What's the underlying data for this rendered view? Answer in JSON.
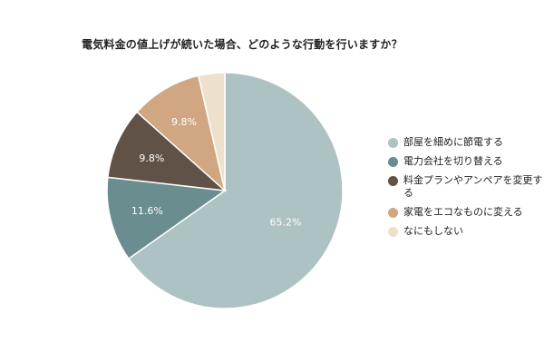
{
  "chart_data": {
    "type": "pie",
    "title": "電気料金の値上げが続いた場合、どのような行動を行いますか？",
    "legend_position": "right",
    "slices": [
      {
        "label": "部屋を細めに節電する",
        "value": 65.2,
        "value_label": "65.2%",
        "color": "#adc2c2"
      },
      {
        "label": "電力会社を切り替える",
        "value": 11.6,
        "value_label": "11.6%",
        "color": "#6a8d90"
      },
      {
        "label": "料金プランやアンペアを変更する",
        "value": 9.8,
        "value_label": "9.8%",
        "color": "#605247"
      },
      {
        "label": "家電をエコなものに変える",
        "value": 9.8,
        "value_label": "9.8%",
        "color": "#d0a782"
      },
      {
        "label": "なにもしない",
        "value": 3.6,
        "value_label": "",
        "color": "#ede1cc"
      }
    ]
  }
}
